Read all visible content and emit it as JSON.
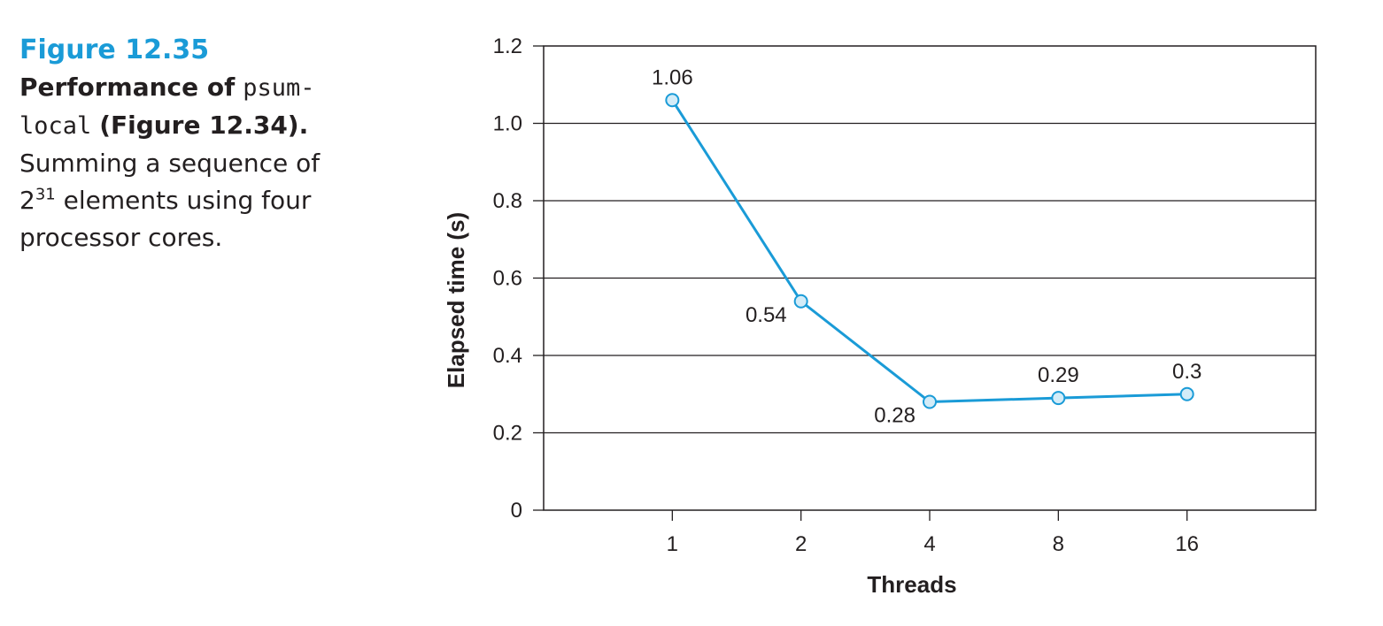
{
  "caption": {
    "figure_number": "Figure 12.35",
    "title_prefix": "Performance of",
    "code_part1": "psum-",
    "code_part2": "local",
    "title_suffix": "(Figure 12.34).",
    "desc_line1": "Summing a sequence of",
    "desc_base": "2",
    "desc_exp": "31",
    "desc_line2_rest": " elements using four",
    "desc_line3": "processor cores."
  },
  "chart_data": {
    "type": "line",
    "title": "",
    "xlabel": "Threads",
    "ylabel": "Elapsed time (s)",
    "categories": [
      "1",
      "2",
      "4",
      "8",
      "16"
    ],
    "series": [
      {
        "values": [
          1.06,
          0.54,
          0.28,
          0.29,
          0.3
        ]
      }
    ],
    "data_labels": [
      "1.06",
      "0.54",
      "0.28",
      "0.29",
      "0.3"
    ],
    "data_label_positions": [
      "above",
      "left-below",
      "left-below",
      "above",
      "above"
    ],
    "yticks": [
      0,
      0.2,
      0.4,
      0.6,
      0.8,
      1.0,
      1.2
    ],
    "ytick_labels": [
      "0",
      "0.2",
      "0.4",
      "0.6",
      "0.8",
      "1.0",
      "1.2"
    ],
    "ylim": [
      0,
      1.2
    ],
    "grid": true,
    "colors": {
      "line": "#1a9bd7",
      "marker_fill": "#d3ecf8",
      "grid": "#231f20"
    }
  }
}
